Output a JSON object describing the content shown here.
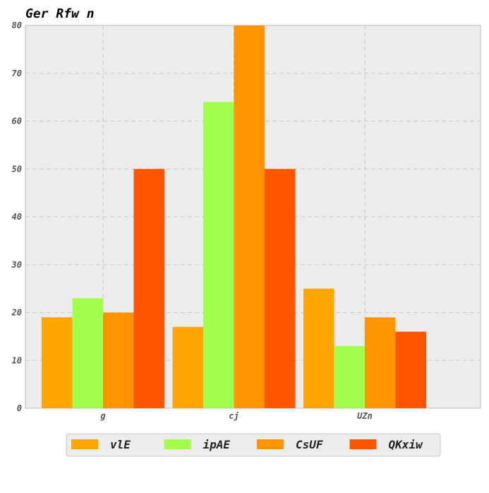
{
  "chart_data": {
    "type": "bar",
    "title": "Ger  Rfw n",
    "xlabel": "",
    "ylabel": "",
    "categories": [
      "g",
      "cj",
      "UZn"
    ],
    "ylim": [
      0,
      80
    ],
    "yticks": [
      0,
      10,
      20,
      30,
      40,
      50,
      60,
      70,
      80
    ],
    "grid": true,
    "legend_position": "bottom",
    "series": [
      {
        "name": "vlE",
        "color": "#FFA500",
        "values": [
          19,
          17,
          25
        ]
      },
      {
        "name": "ipAE",
        "color": "#A3FF4D",
        "values": [
          23,
          64,
          13
        ]
      },
      {
        "name": "CsUF",
        "color": "#FF9400",
        "values": [
          20,
          80,
          19
        ]
      },
      {
        "name": "QKxiw",
        "color": "#FF5500",
        "values": [
          50,
          50,
          16
        ]
      }
    ]
  }
}
